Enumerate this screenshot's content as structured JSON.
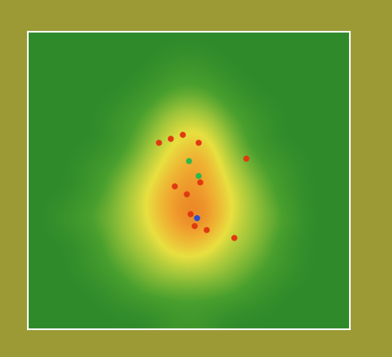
{
  "chart_data": {
    "type": "heatmap",
    "cells": [
      [
        1,
        1,
        1,
        1,
        1,
        1,
        1,
        1,
        1,
        1,
        1,
        1
      ],
      [
        1,
        1,
        1,
        1,
        1,
        2,
        2,
        1,
        1,
        1,
        1,
        1
      ],
      [
        1,
        1,
        1,
        1,
        2,
        3,
        3,
        2,
        1,
        1,
        1,
        1
      ],
      [
        1,
        1,
        1,
        2,
        3,
        5,
        5,
        3,
        2,
        1,
        1,
        1
      ],
      [
        1,
        1,
        1,
        2,
        4,
        6,
        7,
        4,
        2,
        1,
        1,
        1
      ],
      [
        1,
        1,
        2,
        3,
        5,
        7,
        8,
        5,
        3,
        2,
        1,
        1
      ],
      [
        1,
        1,
        2,
        4,
        6,
        8,
        8,
        6,
        4,
        2,
        1,
        1
      ],
      [
        1,
        2,
        3,
        4,
        6,
        8,
        9,
        6,
        4,
        3,
        1,
        1
      ],
      [
        1,
        1,
        2,
        4,
        5,
        7,
        7,
        5,
        4,
        2,
        1,
        1
      ],
      [
        1,
        1,
        2,
        3,
        4,
        5,
        5,
        4,
        3,
        2,
        1,
        1
      ],
      [
        1,
        1,
        1,
        2,
        3,
        3,
        3,
        3,
        2,
        1,
        1,
        1
      ],
      [
        1,
        1,
        1,
        1,
        1,
        2,
        2,
        1,
        1,
        1,
        1,
        1
      ]
    ],
    "points": [
      {
        "color": "#e03a10",
        "marker": "circle",
        "x": [
          5.93,
          5.72,
          5.57,
          4.39,
          4.83,
          5.28,
          7.65,
          4.98,
          5.43,
          7.2,
          6.17,
          5.87
        ],
        "y": [
          5.58,
          7.34,
          6.86,
          3.98,
          3.82,
          3.66,
          4.62,
          5.74,
          6.06,
          7.82,
          7.5,
          3.98
        ]
      },
      {
        "color": "#2fb84a",
        "marker": "circle",
        "x": [
          5.51,
          5.87
        ],
        "y": [
          4.72,
          5.32
        ]
      },
      {
        "color": "#2a4fd0",
        "marker": "circle",
        "x": [
          5.81
        ],
        "y": [
          7.02
        ]
      }
    ],
    "tick_labels": false
  }
}
